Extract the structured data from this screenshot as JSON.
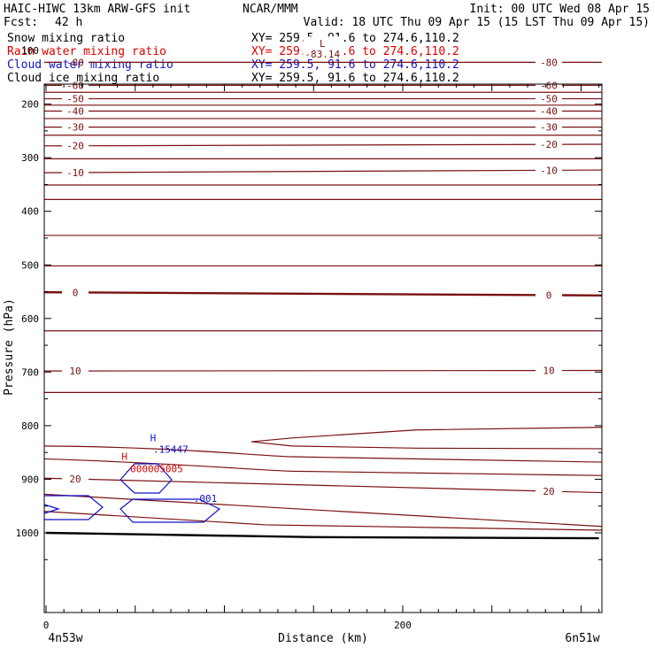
{
  "header": {
    "title_left": "HAIC-HIWC 13km ARW-GFS init",
    "org": "NCAR/MMM",
    "init": "Init: 00 UTC Wed 08 Apr 15",
    "fcst_label": "Fcst:",
    "fcst_value": "42 h",
    "valid": "Valid: 18 UTC Thu 09 Apr 15 (15 LST Thu 09 Apr 15)"
  },
  "legend": [
    {
      "name": "Snow mixing ratio",
      "xy": "XY= 259.5, 91.6 to 274.6,110.2",
      "color": "#000000"
    },
    {
      "name": "Rain water mixing ratio",
      "xy": "XY= 259.5, 91.6 to 274.6,110.2",
      "color": "#dd0000"
    },
    {
      "name": "Cloud water mixing ratio",
      "xy": "XY= 259.5, 91.6 to 274.6,110.2",
      "color": "#1010cc"
    },
    {
      "name": "Cloud ice mixing ratio",
      "xy": "XY= 259.5, 91.6 to 274.6,110.2",
      "color": "#000000"
    }
  ],
  "chart_data": {
    "type": "line",
    "xlabel": "Distance (km)",
    "ylabel": "Pressure (hPa)",
    "xlim": [
      0,
      310
    ],
    "ylim": [
      1050,
      50
    ],
    "x_ticks": [
      0,
      200
    ],
    "y_ticks": [
      100,
      200,
      300,
      400,
      500,
      600,
      700,
      800,
      900,
      1000
    ],
    "endpoint_labels": {
      "left": "4n53w",
      "right": "6n51w"
    },
    "isotherm_color": "#7a1010",
    "cloud_color": "#1010cc",
    "labeled_isotherms": [
      {
        "label": "-80",
        "p_left": 122,
        "p_right": 122
      },
      {
        "label": "-60",
        "p_left": 165,
        "p_right": 165
      },
      {
        "label": "-50",
        "p_left": 190,
        "p_right": 190
      },
      {
        "label": "-40",
        "p_left": 213,
        "p_right": 213
      },
      {
        "label": "-30",
        "p_left": 243,
        "p_right": 243
      },
      {
        "label": "-20",
        "p_left": 278,
        "p_right": 275
      },
      {
        "label": "-10",
        "p_left": 328,
        "p_right": 323
      },
      {
        "label": "0",
        "p_left": 551,
        "p_right": 557
      },
      {
        "label": "10",
        "p_left": 698,
        "p_right": 697
      },
      {
        "label": "20",
        "p_left": 898,
        "p_right": 925
      }
    ],
    "unlabeled_isotherms": [
      [
        60,
        60
      ],
      [
        72,
        72
      ],
      [
        80,
        80
      ],
      [
        88,
        88
      ],
      [
        97,
        97
      ],
      [
        108,
        108
      ],
      [
        138,
        138
      ],
      [
        152,
        152
      ],
      [
        178,
        178
      ],
      [
        202,
        202
      ],
      [
        227,
        227
      ],
      [
        258,
        258
      ],
      [
        302,
        302
      ],
      [
        351,
        351
      ],
      [
        378,
        378
      ],
      [
        445,
        445
      ],
      [
        502,
        502
      ],
      [
        623,
        623
      ],
      [
        738,
        738
      ],
      [
        928,
        988
      ]
    ],
    "minimum": {
      "marker": "L",
      "value": "-83.14",
      "x": 155,
      "p": 92
    },
    "maximum": {
      "marker": "H",
      "value": ".15447",
      "x": 60,
      "p": 852
    },
    "rain_maximum": {
      "marker": "H",
      "value": ".000005005",
      "x": 44,
      "p": 880
    },
    "cloud_contour_label": ".001",
    "surface": [
      [
        0,
        1000
      ],
      [
        150,
        1008
      ],
      [
        310,
        1010
      ]
    ]
  }
}
